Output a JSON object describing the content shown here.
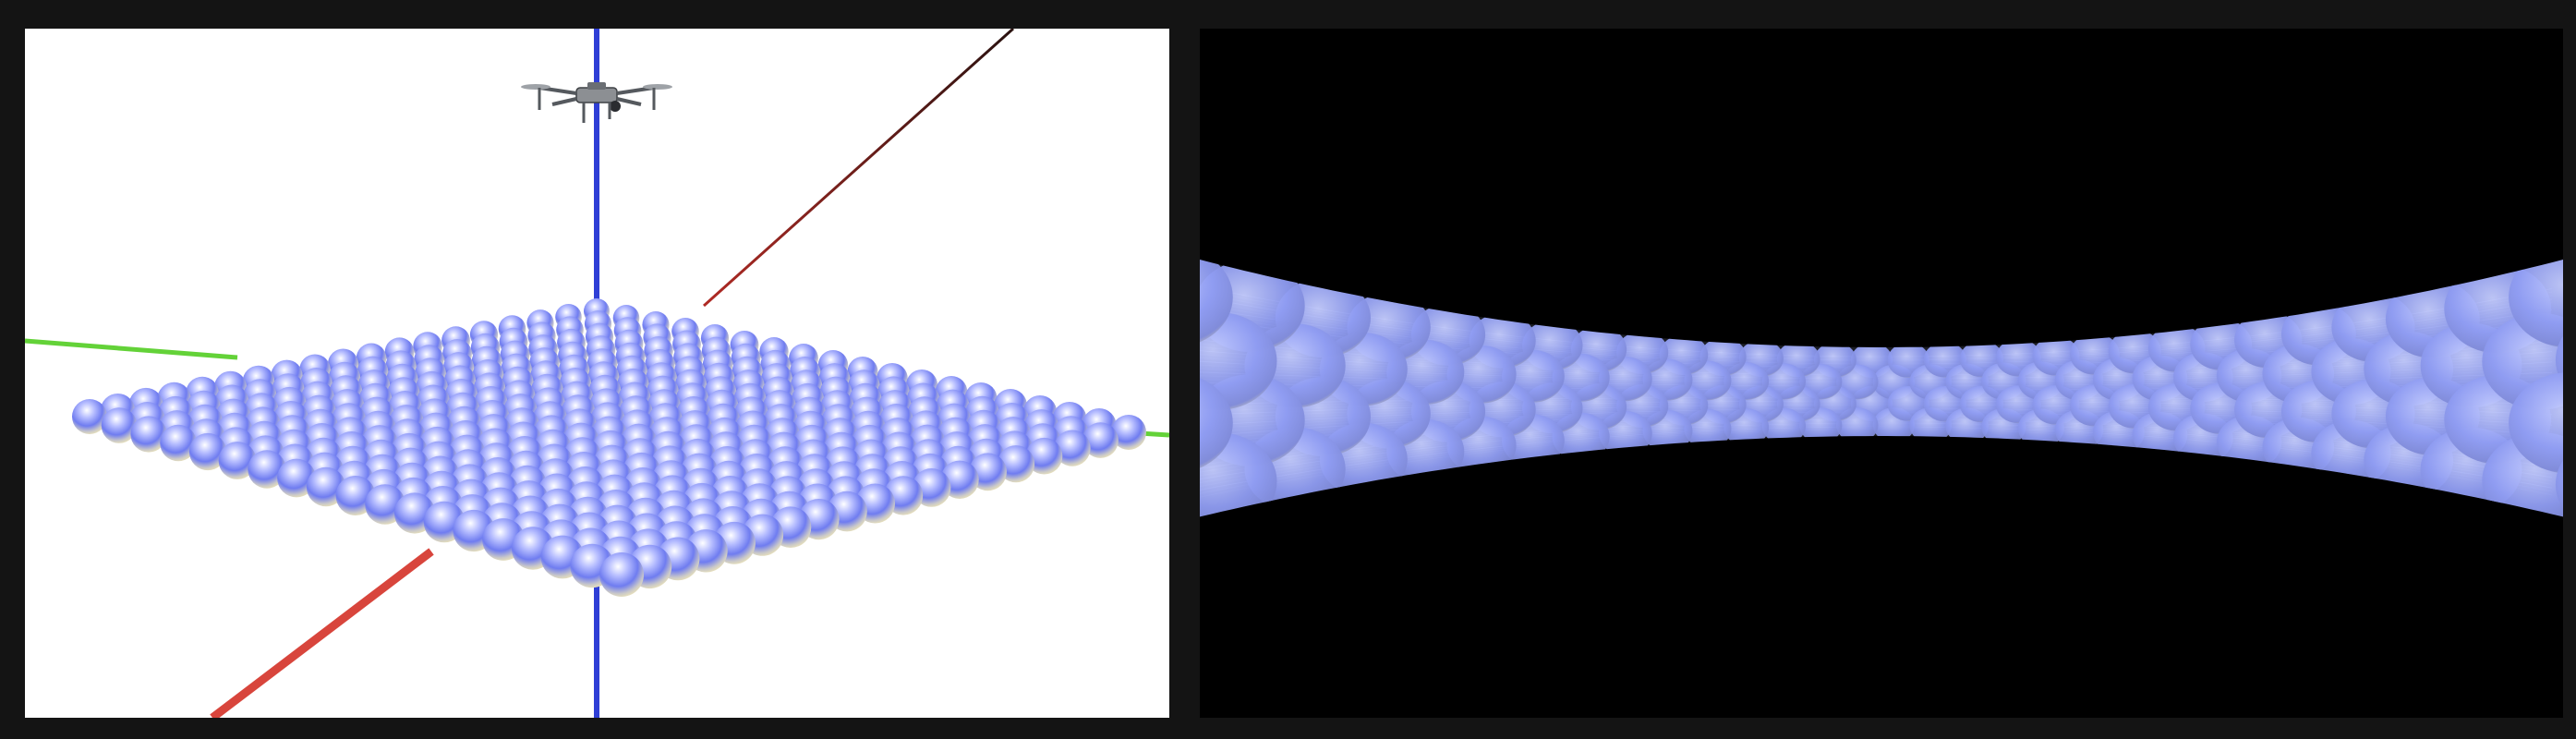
{
  "scene": {
    "left_viewport": {
      "background": "#ffffff",
      "axis_colors": {
        "x": "#d9413a",
        "y": "#5fd13a",
        "z": "#2f3fd6"
      },
      "sphere_grid": {
        "rows": 19,
        "cols": 19,
        "top_color": "#8a96ff",
        "bottom_color": "#fbf6dc"
      },
      "drone_icon": "quadcopter-drone-icon"
    },
    "right_viewport": {
      "background": "#000000",
      "view": "fisheye-view",
      "sphere_color": "#a8b4ff"
    }
  }
}
